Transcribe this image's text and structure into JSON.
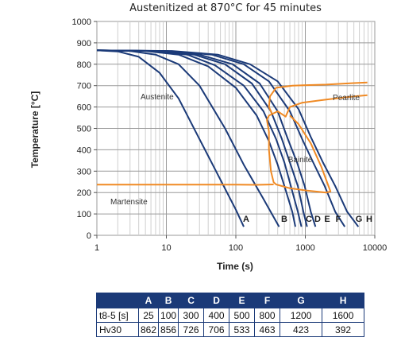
{
  "title": "Austenitized at 870°C for 45 minutes",
  "chart_data": {
    "type": "line",
    "title": "Austenitized at 870°C for 45 minutes",
    "xlabel": "Time (s)",
    "ylabel": "Temperature [°C]",
    "x_scale": "log",
    "xlim": [
      1,
      10000
    ],
    "ylim": [
      0,
      1000
    ],
    "x_ticks": [
      "1",
      "10",
      "100",
      "1000",
      "10000"
    ],
    "y_ticks": [
      "0",
      "100",
      "200",
      "300",
      "400",
      "500",
      "600",
      "700",
      "800",
      "900",
      "1000"
    ],
    "grid": true,
    "series": [
      {
        "name": "A",
        "color": "#1b3a78",
        "points": [
          [
            1,
            865
          ],
          [
            2,
            860
          ],
          [
            4,
            835
          ],
          [
            8,
            760
          ],
          [
            15,
            640
          ],
          [
            30,
            450
          ],
          [
            60,
            260
          ],
          [
            100,
            120
          ],
          [
            130,
            40
          ]
        ]
      },
      {
        "name": "B",
        "color": "#1b3a78",
        "points": [
          [
            1,
            865
          ],
          [
            3,
            862
          ],
          [
            7,
            845
          ],
          [
            15,
            800
          ],
          [
            30,
            700
          ],
          [
            70,
            500
          ],
          [
            130,
            330
          ],
          [
            250,
            170
          ],
          [
            420,
            40
          ]
        ]
      },
      {
        "name": "C",
        "color": "#1b3a78",
        "points": [
          [
            1,
            865
          ],
          [
            5,
            862
          ],
          [
            15,
            845
          ],
          [
            40,
            790
          ],
          [
            100,
            690
          ],
          [
            200,
            560
          ],
          [
            300,
            440
          ],
          [
            400,
            330
          ],
          [
            500,
            230
          ],
          [
            650,
            110
          ],
          [
            720,
            40
          ]
        ]
      },
      {
        "name": "D",
        "color": "#1b3a78",
        "points": [
          [
            1,
            865
          ],
          [
            6,
            862
          ],
          [
            20,
            845
          ],
          [
            50,
            795
          ],
          [
            130,
            700
          ],
          [
            250,
            580
          ],
          [
            380,
            450
          ],
          [
            500,
            340
          ],
          [
            620,
            230
          ],
          [
            780,
            110
          ],
          [
            880,
            40
          ]
        ]
      },
      {
        "name": "E",
        "color": "#1b3a78",
        "points": [
          [
            1,
            865
          ],
          [
            7,
            862
          ],
          [
            25,
            845
          ],
          [
            70,
            800
          ],
          [
            170,
            710
          ],
          [
            320,
            580
          ],
          [
            460,
            450
          ],
          [
            600,
            340
          ],
          [
            780,
            230
          ],
          [
            940,
            110
          ],
          [
            1060,
            40
          ]
        ]
      },
      {
        "name": "F",
        "color": "#1b3a78",
        "points": [
          [
            1,
            865
          ],
          [
            8,
            862
          ],
          [
            30,
            845
          ],
          [
            90,
            800
          ],
          [
            220,
            710
          ],
          [
            400,
            580
          ],
          [
            560,
            450
          ],
          [
            760,
            340
          ],
          [
            980,
            230
          ],
          [
            1200,
            110
          ],
          [
            1400,
            40
          ]
        ]
      },
      {
        "name": "G",
        "color": "#1b3a78",
        "points": [
          [
            1,
            865
          ],
          [
            10,
            862
          ],
          [
            45,
            845
          ],
          [
            130,
            800
          ],
          [
            300,
            720
          ],
          [
            600,
            580
          ],
          [
            900,
            450
          ],
          [
            1300,
            340
          ],
          [
            1900,
            230
          ],
          [
            2700,
            110
          ],
          [
            3700,
            40
          ]
        ]
      },
      {
        "name": "H",
        "color": "#1b3a78",
        "points": [
          [
            1,
            865
          ],
          [
            12,
            862
          ],
          [
            55,
            845
          ],
          [
            160,
            800
          ],
          [
            400,
            720
          ],
          [
            800,
            590
          ],
          [
            1200,
            460
          ],
          [
            1800,
            340
          ],
          [
            2700,
            230
          ],
          [
            4000,
            110
          ],
          [
            5800,
            40
          ]
        ]
      }
    ],
    "phase_boundaries": [
      {
        "name": "pearlite-region",
        "color": "#f08a24",
        "points": [
          [
            330,
            570
          ],
          [
            300,
            600
          ],
          [
            310,
            650
          ],
          [
            380,
            690
          ],
          [
            650,
            700
          ],
          [
            2000,
            705
          ],
          [
            5000,
            712
          ],
          [
            7800,
            715
          ]
        ]
      },
      {
        "name": "bainite-region",
        "color": "#f08a24",
        "points": [
          [
            300,
            485
          ],
          [
            280,
            540
          ],
          [
            300,
            560
          ],
          [
            400,
            580
          ],
          [
            520,
            555
          ],
          [
            600,
            600
          ],
          [
            900,
            620
          ],
          [
            2000,
            635
          ],
          [
            5000,
            650
          ],
          [
            7800,
            655
          ]
        ]
      },
      {
        "name": "bainite-finish",
        "color": "#f08a24",
        "points": [
          [
            300,
            485
          ],
          [
            300,
            400
          ],
          [
            320,
            300
          ],
          [
            350,
            248
          ],
          [
            380,
            238
          ],
          [
            600,
            220
          ],
          [
            1000,
            210
          ],
          [
            2000,
            200
          ],
          [
            2300,
            205
          ],
          [
            1700,
            320
          ],
          [
            1200,
            430
          ],
          [
            800,
            520
          ],
          [
            600,
            560
          ]
        ]
      },
      {
        "name": "martensite-start",
        "color": "#f08a24",
        "points": [
          [
            1,
            237
          ],
          [
            100,
            237
          ],
          [
            200,
            236
          ],
          [
            350,
            238
          ]
        ]
      }
    ],
    "annotations": [
      "Austenite",
      "Pearlite",
      "Bainite",
      "Martensite"
    ],
    "curve_labels": [
      "A",
      "B",
      "C",
      "D",
      "E",
      "F",
      "G",
      "H"
    ]
  },
  "table": {
    "headers": [
      "A",
      "B",
      "C",
      "D",
      "E",
      "F",
      "G",
      "H"
    ],
    "rows": [
      {
        "label": "t8-5 [s]",
        "values": [
          "25",
          "100",
          "300",
          "400",
          "500",
          "800",
          "1200",
          "1600"
        ]
      },
      {
        "label": "Hv30",
        "values": [
          "862",
          "856",
          "726",
          "706",
          "533",
          "463",
          "423",
          "392"
        ]
      }
    ]
  }
}
